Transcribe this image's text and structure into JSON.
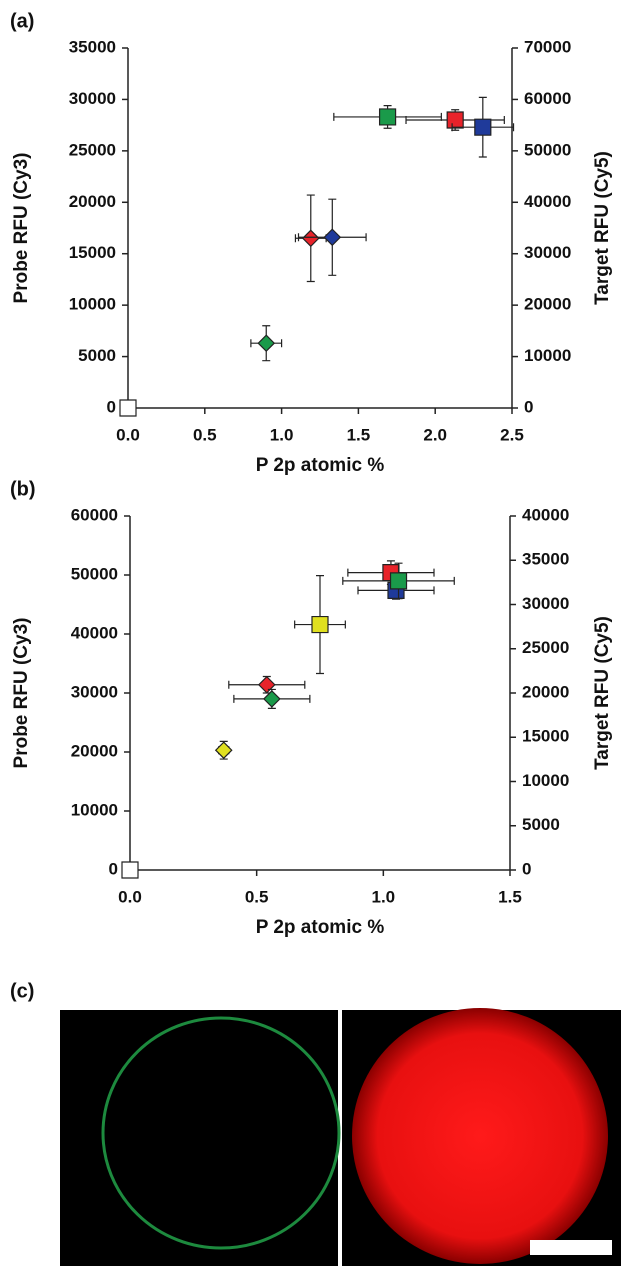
{
  "chart_data": [
    {
      "type": "scatter",
      "panel_label": "(a)",
      "x_label": "P 2p atomic %",
      "y_label": "Probe RFU (Cy3)",
      "y2_label": "Target RFU (Cy5)",
      "xlim": [
        0,
        2.5
      ],
      "ylim": [
        0,
        35000
      ],
      "y2lim": [
        0,
        70000
      ],
      "xticks": [
        {
          "value": 0,
          "label": "0.0"
        },
        0.5,
        {
          "value": 1,
          "label": "1.0"
        },
        1.5,
        {
          "value": 2,
          "label": "2.0"
        },
        2.5
      ],
      "yticks": [
        0,
        5000,
        10000,
        15000,
        20000,
        25000,
        30000,
        35000
      ],
      "y2ticks": [
        0,
        10000,
        20000,
        30000,
        40000,
        50000,
        60000,
        70000
      ],
      "series": [
        {
          "marker": "square",
          "color": "#ffffff",
          "x": [
            0
          ],
          "values": [
            0
          ],
          "xerr": [
            0
          ],
          "yerr": [
            0
          ]
        },
        {
          "marker": "diamond",
          "color": "#1a9a4a",
          "x": [
            0.9
          ],
          "values": [
            6300
          ],
          "xerr": [
            0.1
          ],
          "yerr": [
            1700
          ]
        },
        {
          "marker": "diamond",
          "color": "#e8232a",
          "x": [
            1.19
          ],
          "values": [
            16500
          ],
          "xerr": [
            0.1
          ],
          "yerr": [
            4200
          ]
        },
        {
          "marker": "diamond",
          "color": "#1f3a9a",
          "x": [
            1.33
          ],
          "values": [
            16600
          ],
          "xerr": [
            0.22
          ],
          "yerr": [
            3700
          ]
        },
        {
          "marker": "square",
          "color": "#1a9a4a",
          "x": [
            1.69
          ],
          "values": [
            28300
          ],
          "xerr": [
            0.35
          ],
          "yerr": [
            1100
          ]
        },
        {
          "marker": "square",
          "color": "#e8232a",
          "x": [
            2.13
          ],
          "values": [
            28000
          ],
          "xerr": [
            0.32
          ],
          "yerr": [
            1000
          ]
        },
        {
          "marker": "square",
          "color": "#1f3a9a",
          "x": [
            2.31
          ],
          "values": [
            27300
          ],
          "xerr": [
            0.2
          ],
          "yerr": [
            2900
          ]
        }
      ]
    },
    {
      "type": "scatter",
      "panel_label": "(b)",
      "x_label": "P 2p atomic %",
      "y_label": "Probe RFU (Cy3)",
      "y2_label": "Target RFU (Cy5)",
      "xlim": [
        0,
        1.5
      ],
      "ylim": [
        0,
        60000
      ],
      "y2lim": [
        0,
        40000
      ],
      "xticks": [
        {
          "value": 0,
          "label": "0.0"
        },
        0.5,
        {
          "value": 1,
          "label": "1.0"
        },
        1.5
      ],
      "yticks": [
        0,
        10000,
        20000,
        30000,
        40000,
        50000,
        60000
      ],
      "y2ticks": [
        0,
        5000,
        10000,
        15000,
        20000,
        25000,
        30000,
        35000,
        40000
      ],
      "series": [
        {
          "marker": "square",
          "color": "#ffffff",
          "x": [
            0
          ],
          "values": [
            0
          ],
          "xerr": [
            0
          ],
          "yerr": [
            0
          ]
        },
        {
          "marker": "diamond",
          "color": "#e0e020",
          "x": [
            0.37
          ],
          "values": [
            20300
          ],
          "xerr": [
            0.02
          ],
          "yerr": [
            1500
          ]
        },
        {
          "marker": "diamond",
          "color": "#e8232a",
          "x": [
            0.54
          ],
          "values": [
            31400
          ],
          "xerr": [
            0.15
          ],
          "yerr": [
            1400
          ]
        },
        {
          "marker": "diamond",
          "color": "#1a9a4a",
          "x": [
            0.56
          ],
          "values": [
            29000
          ],
          "xerr": [
            0.15
          ],
          "yerr": [
            1600
          ]
        },
        {
          "marker": "square",
          "color": "#e0e020",
          "x": [
            0.75
          ],
          "values": [
            41600
          ],
          "xerr": [
            0.1
          ],
          "yerr": [
            8300
          ]
        },
        {
          "marker": "square",
          "color": "#e8232a",
          "x": [
            1.03
          ],
          "values": [
            50400
          ],
          "xerr": [
            0.17
          ],
          "yerr": [
            2000
          ]
        },
        {
          "marker": "square",
          "color": "#1f3a9a",
          "x": [
            1.05
          ],
          "values": [
            47400
          ],
          "xerr": [
            0.15
          ],
          "yerr": [
            1500
          ]
        },
        {
          "marker": "square",
          "color": "#1a9a4a",
          "x": [
            1.06
          ],
          "values": [
            49000
          ],
          "xerr": [
            0.22
          ],
          "yerr": [
            3000
          ]
        }
      ]
    }
  ],
  "panel_c": {
    "label": "(c)"
  }
}
